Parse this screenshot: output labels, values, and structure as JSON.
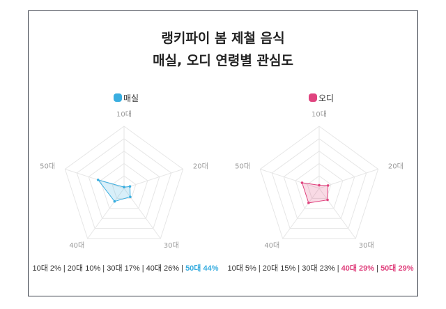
{
  "chart_data": [
    {
      "type": "radar",
      "title": "랭키파이 봄 제철 음식",
      "subtitle": "매실, 오디 연령별 관심도",
      "legend": "매실",
      "color": "#3aaee0",
      "categories": [
        "10대",
        "20대",
        "30대",
        "40대",
        "50대"
      ],
      "values": [
        2,
        10,
        17,
        26,
        44
      ],
      "unit": "%",
      "rmax": 100,
      "grid": true,
      "summary": [
        "10대 2%",
        "20대 10%",
        "30대 17%",
        "40대 26%",
        "50대 44%"
      ],
      "highlight": [
        4
      ]
    },
    {
      "type": "radar",
      "legend": "오디",
      "color": "#e0447f",
      "categories": [
        "10대",
        "20대",
        "30대",
        "40대",
        "50대"
      ],
      "values": [
        5,
        15,
        23,
        29,
        29
      ],
      "unit": "%",
      "rmax": 100,
      "grid": true,
      "summary": [
        "10대 5%",
        "20대 15%",
        "30대 23%",
        "40대 29%",
        "50대 29%"
      ],
      "highlight": [
        3,
        4
      ]
    }
  ]
}
